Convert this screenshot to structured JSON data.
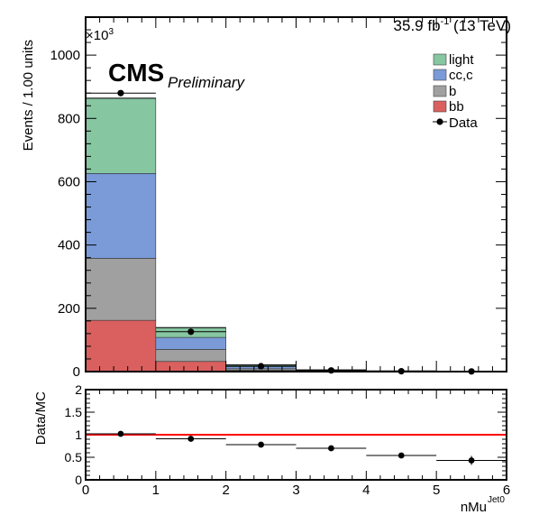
{
  "header": {
    "lumi_value": "35.9 fb",
    "lumi_exp": "-1",
    "lumi_energy": " (13 TeV)",
    "exp_marker": "×10",
    "exp_power": "3",
    "cms": "CMS",
    "preliminary": "Preliminary"
  },
  "legend": {
    "entries": [
      {
        "label": "light",
        "color": "#86c6a1"
      },
      {
        "label": "cc,c",
        "color": "#7a9bd8"
      },
      {
        "label": "b",
        "color": "#a0a0a0"
      },
      {
        "label": "bb",
        "color": "#d9605f"
      },
      {
        "label": "Data",
        "color": "#000000"
      }
    ]
  },
  "chart_data": [
    {
      "type": "bar",
      "stacked": true,
      "ylabel": "Events / 1.00 units",
      "ylim": [
        0,
        1120
      ],
      "yticks": [
        "0",
        "200",
        "400",
        "600",
        "800",
        "1000"
      ],
      "x_bins": [
        [
          0,
          1
        ],
        [
          1,
          2
        ],
        [
          2,
          3
        ],
        [
          3,
          4
        ],
        [
          4,
          5
        ],
        [
          5,
          6
        ]
      ],
      "series": [
        {
          "name": "bb",
          "color": "#d9605f",
          "values": [
            162,
            32,
            4,
            1.2,
            0.5,
            0.3
          ]
        },
        {
          "name": "b",
          "color": "#a0a0a0",
          "values": [
            196,
            38,
            5,
            1.3,
            0.5,
            0.3
          ]
        },
        {
          "name": "cc,c",
          "color": "#7a9bd8",
          "values": [
            268,
            38,
            7,
            1.5,
            0.6,
            0.4
          ]
        },
        {
          "name": "light",
          "color": "#86c6a1",
          "values": [
            238,
            31,
            5,
            1.2,
            0.5,
            0.3
          ]
        }
      ],
      "data": {
        "name": "Data",
        "x": [
          0.5,
          1.5,
          2.5,
          3.5,
          4.5,
          5.5
        ],
        "y": [
          880,
          126,
          17,
          3.8,
          1.1,
          0.6
        ]
      }
    },
    {
      "type": "scatter",
      "ylabel": "Data/MC",
      "xlabel": "nMu",
      "xlabel_sup": "Jet0",
      "xlim": [
        0,
        6
      ],
      "ylim": [
        0,
        2
      ],
      "yticks": [
        "0",
        "0.5",
        "1",
        "1.5",
        "2"
      ],
      "xticks": [
        "0",
        "1",
        "2",
        "3",
        "4",
        "5",
        "6"
      ],
      "reference_line": {
        "y": 1,
        "color": "#ff0000"
      },
      "points": [
        {
          "x": 0.5,
          "y": 1.02,
          "err": 0.02
        },
        {
          "x": 1.5,
          "y": 0.91,
          "err": 0.03
        },
        {
          "x": 2.5,
          "y": 0.78,
          "err": 0.04
        },
        {
          "x": 3.5,
          "y": 0.7,
          "err": 0.04
        },
        {
          "x": 4.5,
          "y": 0.54,
          "err": 0.06
        },
        {
          "x": 5.5,
          "y": 0.43,
          "err": 0.1
        }
      ]
    }
  ]
}
